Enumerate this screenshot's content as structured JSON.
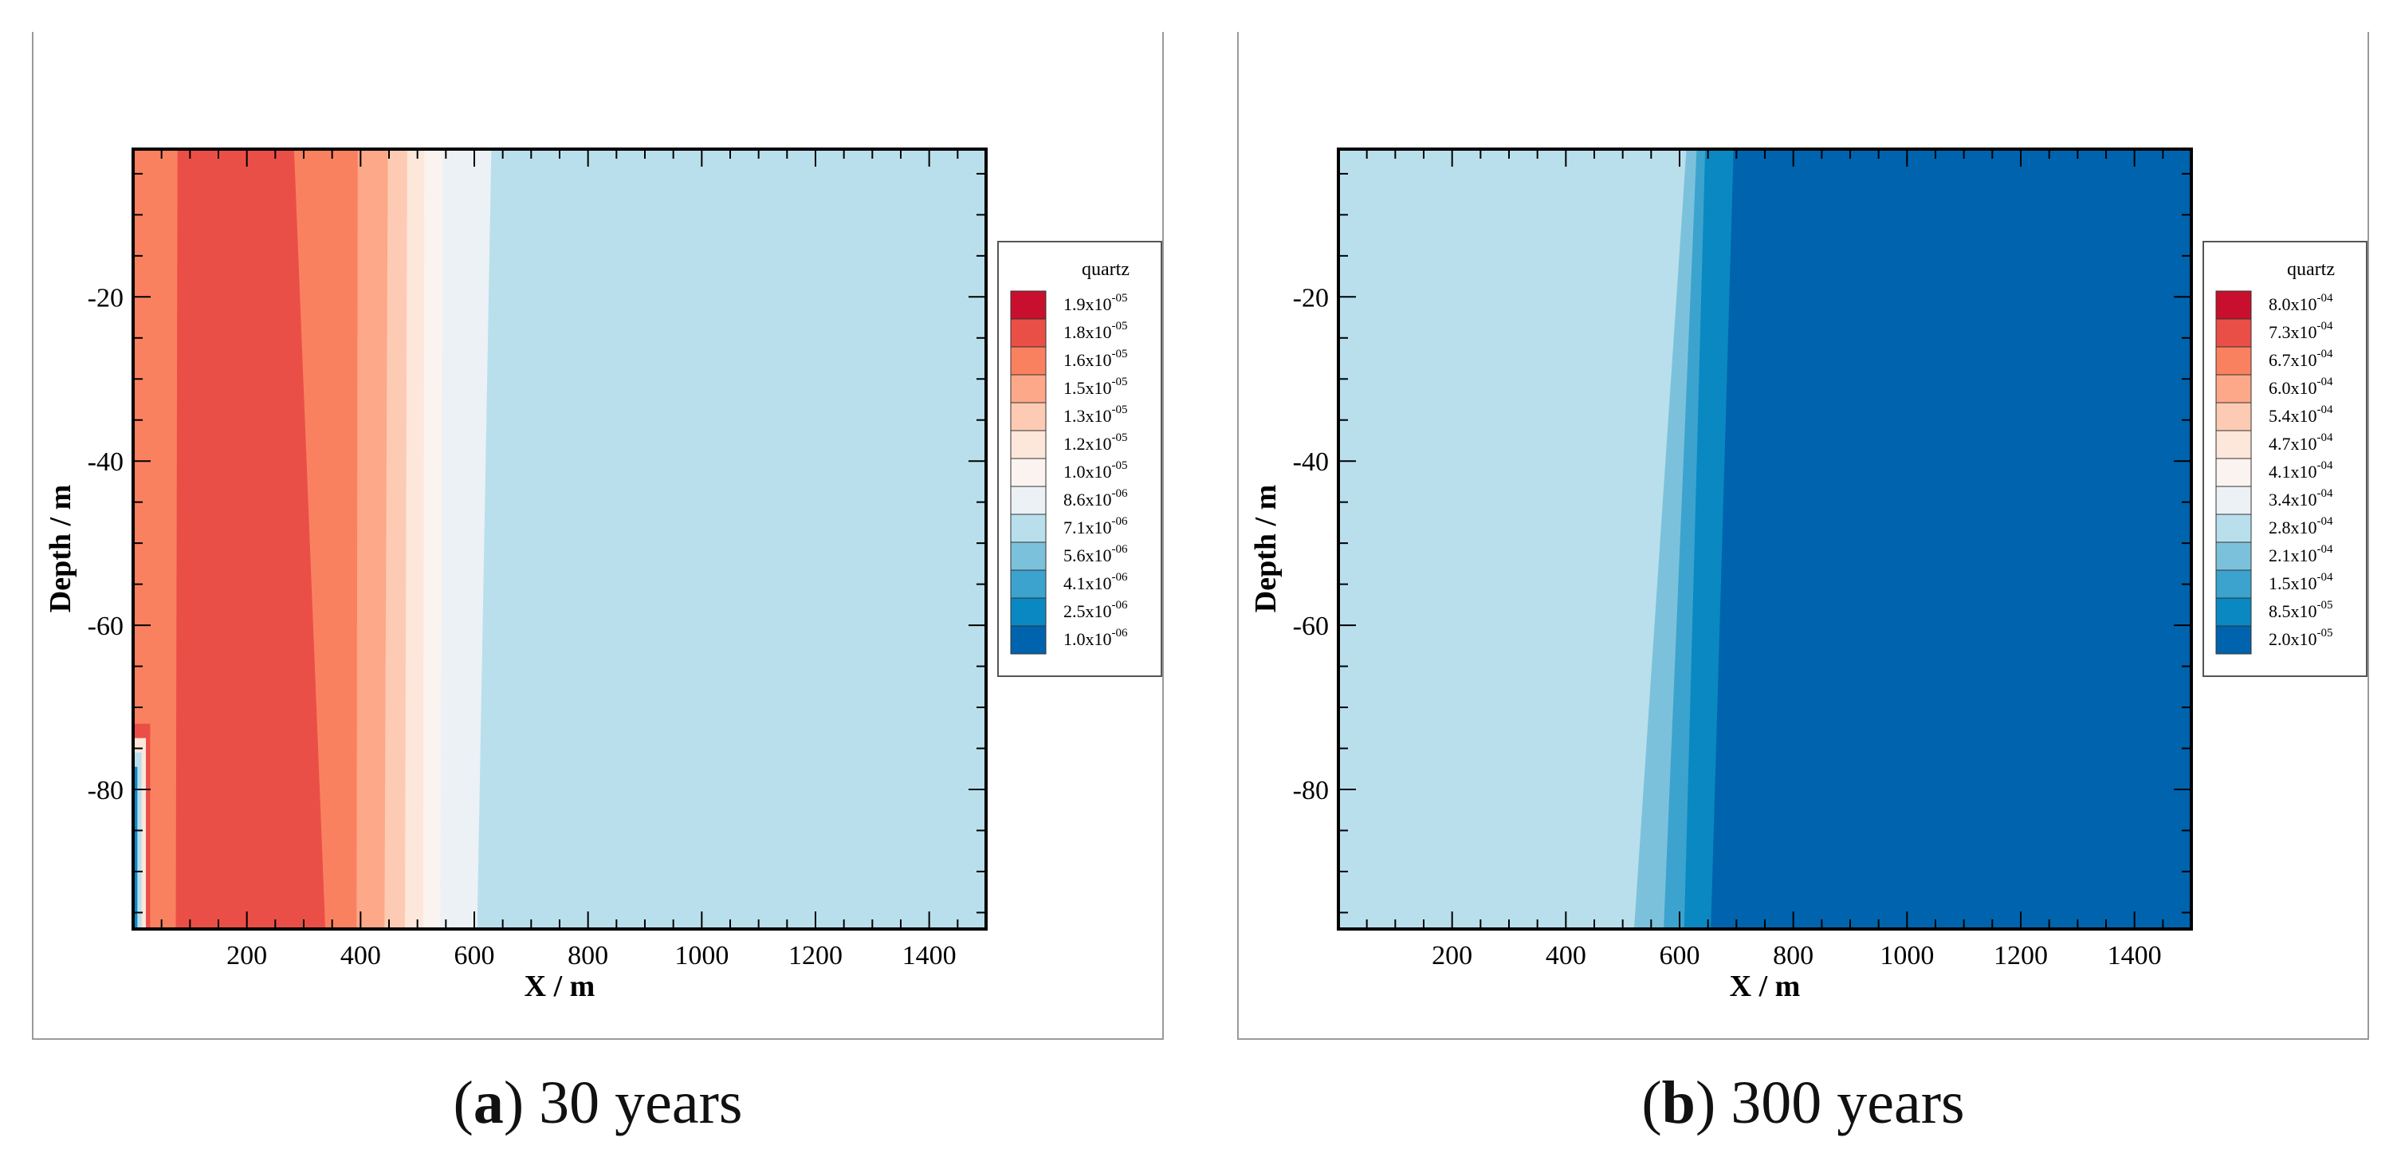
{
  "chart_data": [
    {
      "type": "heatmap",
      "panel_letter": "a",
      "caption": "30 years",
      "xlabel": "X / m",
      "ylabel": "Depth / m",
      "xlim": [
        0,
        1500
      ],
      "ylim": [
        -97,
        -2
      ],
      "x_ticks": [
        200,
        400,
        600,
        800,
        1000,
        1200,
        1400
      ],
      "y_ticks": [
        -20,
        -40,
        -60,
        -80
      ],
      "legend": {
        "title": "quartz",
        "placement": "right",
        "levels": [
          {
            "mantissa": "1.9",
            "exp": "-05",
            "color": "#c8102e"
          },
          {
            "mantissa": "1.8",
            "exp": "-05",
            "color": "#ea4f47"
          },
          {
            "mantissa": "1.6",
            "exp": "-05",
            "color": "#fa8160"
          },
          {
            "mantissa": "1.5",
            "exp": "-05",
            "color": "#fca889"
          },
          {
            "mantissa": "1.3",
            "exp": "-05",
            "color": "#fdcbb3"
          },
          {
            "mantissa": "1.2",
            "exp": "-05",
            "color": "#fde6da"
          },
          {
            "mantissa": "1.0",
            "exp": "-05",
            "color": "#fbf3ef"
          },
          {
            "mantissa": "8.6",
            "exp": "-06",
            "color": "#ebf1f5"
          },
          {
            "mantissa": "7.1",
            "exp": "-06",
            "color": "#b9dfec"
          },
          {
            "mantissa": "5.6",
            "exp": "-06",
            "color": "#7cc1dc"
          },
          {
            "mantissa": "4.1",
            "exp": "-06",
            "color": "#3ca3cf"
          },
          {
            "mantissa": "2.5",
            "exp": "-06",
            "color": "#0a88c2"
          },
          {
            "mantissa": "1.0",
            "exp": "-06",
            "color": "#0063ad"
          }
        ]
      },
      "bands": [
        {
          "color": "#fa8160",
          "x_top": 0,
          "x_bottom": 0
        },
        {
          "color": "#ea4f47",
          "x_top": 78,
          "x_bottom": 75
        },
        {
          "color": "#fa8160",
          "x_top": 283,
          "x_bottom": 338
        },
        {
          "color": "#fca889",
          "x_top": 395,
          "x_bottom": 393
        },
        {
          "color": "#fdcbb3",
          "x_top": 448,
          "x_bottom": 442
        },
        {
          "color": "#fde6da",
          "x_top": 482,
          "x_bottom": 478
        },
        {
          "color": "#fbf3ef",
          "x_top": 512,
          "x_bottom": 510
        },
        {
          "color": "#ebf1f5",
          "x_top": 545,
          "x_bottom": 540
        },
        {
          "color": "#b9dfec",
          "x_top": 630,
          "x_bottom": 605
        }
      ],
      "edge_feature": {
        "x_max": 30,
        "y_top": -72,
        "colors": [
          "#ea4f47",
          "#fde6da",
          "#b9dfec",
          "#0a88c2"
        ]
      }
    },
    {
      "type": "heatmap",
      "panel_letter": "b",
      "caption": "300 years",
      "xlabel": "X / m",
      "ylabel": "Depth / m",
      "xlim": [
        0,
        1500
      ],
      "ylim": [
        -97,
        -2
      ],
      "x_ticks": [
        200,
        400,
        600,
        800,
        1000,
        1200,
        1400
      ],
      "y_ticks": [
        -20,
        -40,
        -60,
        -80
      ],
      "legend": {
        "title": "quartz",
        "placement": "right",
        "levels": [
          {
            "mantissa": "8.0",
            "exp": "-04",
            "color": "#c8102e"
          },
          {
            "mantissa": "7.3",
            "exp": "-04",
            "color": "#ea4f47"
          },
          {
            "mantissa": "6.7",
            "exp": "-04",
            "color": "#fa8160"
          },
          {
            "mantissa": "6.0",
            "exp": "-04",
            "color": "#fca889"
          },
          {
            "mantissa": "5.4",
            "exp": "-04",
            "color": "#fdcbb3"
          },
          {
            "mantissa": "4.7",
            "exp": "-04",
            "color": "#fde6da"
          },
          {
            "mantissa": "4.1",
            "exp": "-04",
            "color": "#fbf3ef"
          },
          {
            "mantissa": "3.4",
            "exp": "-04",
            "color": "#ebf1f5"
          },
          {
            "mantissa": "2.8",
            "exp": "-04",
            "color": "#b9dfec"
          },
          {
            "mantissa": "2.1",
            "exp": "-04",
            "color": "#7cc1dc"
          },
          {
            "mantissa": "1.5",
            "exp": "-04",
            "color": "#3ca3cf"
          },
          {
            "mantissa": "8.5",
            "exp": "-05",
            "color": "#0a88c2"
          },
          {
            "mantissa": "2.0",
            "exp": "-05",
            "color": "#0063ad"
          }
        ]
      },
      "bands": [
        {
          "color": "#b9dfec",
          "x_top": 0,
          "x_bottom": 0
        },
        {
          "color": "#7cc1dc",
          "x_top": 612,
          "x_bottom": 520
        },
        {
          "color": "#3ca3cf",
          "x_top": 630,
          "x_bottom": 572
        },
        {
          "color": "#0a88c2",
          "x_top": 645,
          "x_bottom": 608
        },
        {
          "color": "#0063ad",
          "x_top": 695,
          "x_bottom": 655
        }
      ],
      "edge_feature": null
    }
  ]
}
